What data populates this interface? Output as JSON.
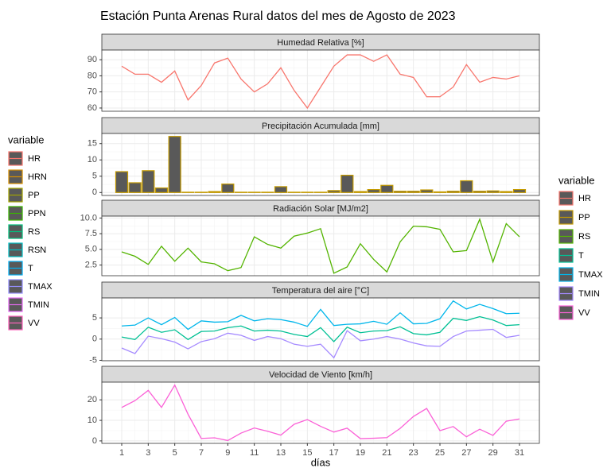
{
  "title": "Estación Punta Arenas Rural datos del mes de Agosto de 2023",
  "x_label": "días",
  "legends": [
    {
      "title": "variable",
      "entries": [
        {
          "name": "HR",
          "color": "#F8766D"
        },
        {
          "name": "HRN",
          "color": "#D89000"
        },
        {
          "name": "PP",
          "color": "#A3A500"
        },
        {
          "name": "PPN",
          "color": "#39B600"
        },
        {
          "name": "RS",
          "color": "#00BF7D"
        },
        {
          "name": "RSN",
          "color": "#00BFC4"
        },
        {
          "name": "T",
          "color": "#00B0F6"
        },
        {
          "name": "TMAX",
          "color": "#9590FF"
        },
        {
          "name": "TMIN",
          "color": "#E76BF3"
        },
        {
          "name": "VV",
          "color": "#FF62BC"
        }
      ]
    },
    {
      "title": "variable",
      "entries": [
        {
          "name": "HR",
          "color": "#F8766D"
        },
        {
          "name": "PP",
          "color": "#C49A00"
        },
        {
          "name": "RS",
          "color": "#53B400"
        },
        {
          "name": "T",
          "color": "#00C094"
        },
        {
          "name": "TMAX",
          "color": "#00B6EB"
        },
        {
          "name": "TMIN",
          "color": "#A58AFF"
        },
        {
          "name": "VV",
          "color": "#FB61D7"
        }
      ]
    }
  ],
  "chart_data": [
    {
      "type": "line",
      "title": "Humedad Relativa [%]",
      "x": [
        1,
        2,
        3,
        4,
        5,
        6,
        7,
        8,
        9,
        10,
        11,
        12,
        13,
        14,
        15,
        16,
        17,
        18,
        19,
        20,
        21,
        22,
        23,
        24,
        25,
        26,
        27,
        28,
        29,
        30,
        31
      ],
      "series": [
        {
          "color": "#F8766D",
          "values": [
            86,
            81,
            81,
            76,
            83,
            65,
            74,
            88,
            91,
            78,
            70,
            75,
            85,
            71,
            60,
            73,
            86,
            93,
            93,
            89,
            93,
            81,
            79,
            67,
            67,
            73,
            87,
            76,
            79,
            78,
            80
          ]
        }
      ],
      "xlim": [
        -0.5,
        32.5
      ],
      "xticks": [
        1,
        3,
        5,
        7,
        9,
        11,
        13,
        15,
        17,
        19,
        21,
        23,
        25,
        27,
        29,
        31
      ],
      "ylim": [
        58,
        96
      ],
      "yticks": [
        60,
        70,
        80,
        90
      ]
    },
    {
      "type": "bar",
      "title": "Precipitación Acumulada [mm]",
      "x": [
        1,
        2,
        3,
        4,
        5,
        6,
        7,
        8,
        9,
        10,
        11,
        12,
        13,
        14,
        15,
        16,
        17,
        18,
        19,
        20,
        21,
        22,
        23,
        24,
        25,
        26,
        27,
        28,
        29,
        30,
        31
      ],
      "series": [
        {
          "color": "#C49A00",
          "values": [
            6.4,
            3.0,
            6.7,
            1.4,
            17.2,
            0.1,
            0.1,
            0.3,
            2.6,
            0.1,
            0.1,
            0.1,
            1.8,
            0.1,
            0.1,
            0.1,
            0.6,
            5.3,
            0.3,
            0.9,
            2.2,
            0.4,
            0.4,
            0.8,
            0.2,
            0.4,
            3.6,
            0.4,
            0.5,
            0.3,
            0.9
          ]
        }
      ],
      "xlim": [
        -0.5,
        32.5
      ],
      "xticks": [
        1,
        3,
        5,
        7,
        9,
        11,
        13,
        15,
        17,
        19,
        21,
        23,
        25,
        27,
        29,
        31
      ],
      "ylim": [
        -0.9,
        18.1
      ],
      "yticks": [
        0,
        5,
        10,
        15
      ]
    },
    {
      "type": "line",
      "title": "Radiación Solar [MJ/m2]",
      "x": [
        1,
        2,
        3,
        4,
        5,
        6,
        7,
        8,
        9,
        10,
        11,
        12,
        13,
        14,
        15,
        16,
        17,
        18,
        19,
        20,
        21,
        22,
        23,
        24,
        25,
        26,
        27,
        28,
        29,
        30,
        31
      ],
      "series": [
        {
          "color": "#53B400",
          "values": [
            4.6,
            3.9,
            2.6,
            5.5,
            3.1,
            5.2,
            3.0,
            2.7,
            1.6,
            2.1,
            7.0,
            5.8,
            5.2,
            7.1,
            7.6,
            8.3,
            1.2,
            2.2,
            5.9,
            3.4,
            1.4,
            6.2,
            8.7,
            8.6,
            8.2,
            4.6,
            4.8,
            9.8,
            3.0,
            9.1,
            7.0
          ]
        }
      ],
      "xlim": [
        -0.5,
        32.5
      ],
      "xticks": [
        1,
        3,
        5,
        7,
        9,
        11,
        13,
        15,
        17,
        19,
        21,
        23,
        25,
        27,
        29,
        31
      ],
      "ylim": [
        0.8,
        10.3
      ],
      "yticks": [
        {
          "value": 2.5,
          "label": "2.5"
        },
        {
          "value": 5,
          "label": "5.0"
        },
        {
          "value": 7.5,
          "label": "7.5"
        },
        {
          "value": 10,
          "label": "10.0"
        }
      ]
    },
    {
      "type": "line",
      "title": "Temperatura del aire [°C]",
      "x": [
        1,
        2,
        3,
        4,
        5,
        6,
        7,
        8,
        9,
        10,
        11,
        12,
        13,
        14,
        15,
        16,
        17,
        18,
        19,
        20,
        21,
        22,
        23,
        24,
        25,
        26,
        27,
        28,
        29,
        30,
        31
      ],
      "series": [
        {
          "color": "#00B6EB",
          "values": [
            3.1,
            3.3,
            5.0,
            3.4,
            5.1,
            2.3,
            4.3,
            4.0,
            4.1,
            5.6,
            4.3,
            4.8,
            4.6,
            4.0,
            3.0,
            7.0,
            3.2,
            3.5,
            3.6,
            4.2,
            3.5,
            6.2,
            3.6,
            3.7,
            4.8,
            9.0,
            7.1,
            8.2,
            7.2,
            6.0,
            6.1
          ]
        },
        {
          "color": "#00C094",
          "values": [
            0.5,
            -0.1,
            2.8,
            1.6,
            2.2,
            -0.1,
            1.8,
            1.9,
            2.7,
            3.1,
            1.9,
            2.1,
            1.9,
            1.1,
            0.6,
            2.7,
            -0.6,
            2.8,
            1.5,
            1.9,
            2.0,
            2.9,
            1.3,
            1.0,
            1.6,
            4.9,
            4.4,
            5.3,
            4.5,
            3.2,
            3.4
          ]
        },
        {
          "color": "#A58AFF",
          "values": [
            -2.1,
            -3.4,
            0.7,
            0.1,
            -0.7,
            -2.3,
            -0.6,
            0.1,
            1.4,
            0.9,
            -0.3,
            0.6,
            0.1,
            -1.2,
            -1.7,
            -1.2,
            -4.4,
            2.0,
            -0.4,
            0.0,
            0.6,
            0.0,
            -0.9,
            -1.6,
            -1.7,
            0.6,
            1.9,
            2.1,
            2.3,
            0.4,
            0.9
          ]
        }
      ],
      "xlim": [
        -0.5,
        32.5
      ],
      "xticks": [
        1,
        3,
        5,
        7,
        9,
        11,
        13,
        15,
        17,
        19,
        21,
        23,
        25,
        27,
        29,
        31
      ],
      "ylim": [
        -5.1,
        9.7
      ],
      "yticks": [
        -5,
        0,
        5
      ]
    },
    {
      "type": "line",
      "title": "Velocidad de Viento [km/h]",
      "x": [
        1,
        2,
        3,
        4,
        5,
        6,
        7,
        8,
        9,
        10,
        11,
        12,
        13,
        14,
        15,
        16,
        17,
        18,
        19,
        20,
        21,
        22,
        23,
        24,
        25,
        26,
        27,
        28,
        29,
        30,
        31
      ],
      "series": [
        {
          "color": "#FB61D7",
          "values": [
            16.3,
            19.6,
            24.6,
            16.3,
            27.2,
            13.0,
            1.2,
            1.5,
            0.2,
            3.8,
            6.3,
            4.7,
            2.8,
            8.1,
            10.4,
            7.1,
            4.3,
            6.2,
            1.1,
            1.3,
            1.6,
            6.1,
            11.9,
            15.8,
            5.0,
            7.0,
            2.0,
            5.7,
            2.7,
            9.6,
            10.7
          ]
        }
      ],
      "xlim": [
        -0.5,
        32.5
      ],
      "xticks": [
        1,
        3,
        5,
        7,
        9,
        11,
        13,
        15,
        17,
        19,
        21,
        23,
        25,
        27,
        29,
        31
      ],
      "ylim": [
        -1.2,
        28.6
      ],
      "yticks": [
        0,
        10,
        20
      ]
    }
  ]
}
